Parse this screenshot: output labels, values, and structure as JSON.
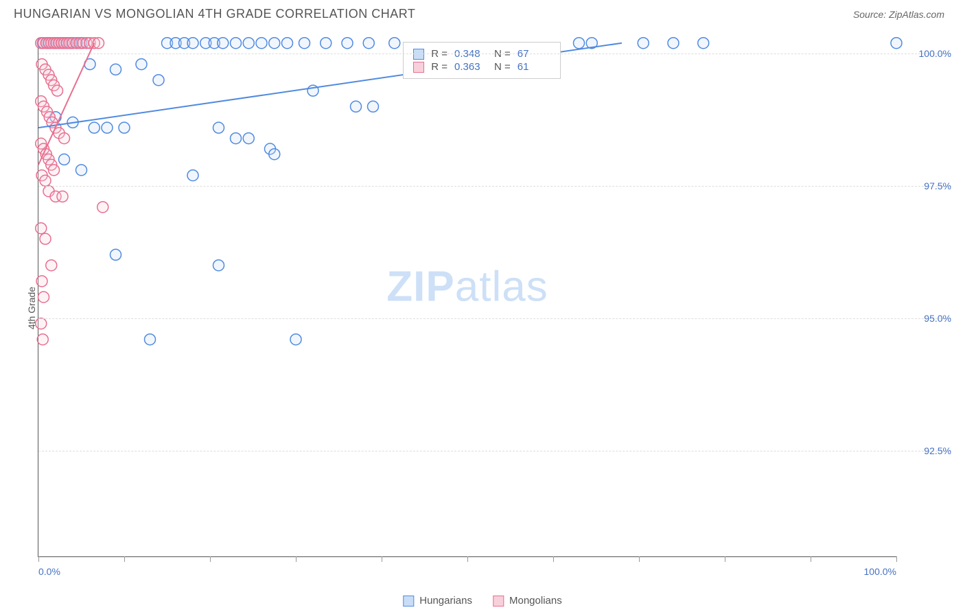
{
  "header": {
    "title": "HUNGARIAN VS MONGOLIAN 4TH GRADE CORRELATION CHART",
    "source_prefix": "Source: ",
    "source_name": "ZipAtlas.com"
  },
  "watermark": {
    "zip": "ZIP",
    "atlas": "atlas"
  },
  "chart": {
    "type": "scatter",
    "y_axis_label": "4th Grade",
    "xlim": [
      0,
      100
    ],
    "ylim": [
      90.5,
      100.3
    ],
    "x_ticks": [
      0,
      10,
      20,
      30,
      40,
      50,
      60,
      70,
      80,
      90,
      100
    ],
    "x_tick_labels": {
      "0": "0.0%",
      "100": "100.0%"
    },
    "y_ticks": [
      92.5,
      95.0,
      97.5,
      100.0
    ],
    "y_tick_labels": [
      "92.5%",
      "95.0%",
      "97.5%",
      "100.0%"
    ],
    "grid_color": "#dddddd",
    "background_color": "#ffffff",
    "marker_radius": 8,
    "marker_stroke_width": 1.5,
    "marker_fill_opacity": 0.25,
    "trend_line_width": 2,
    "series": [
      {
        "name": "Hungarians",
        "color": "#4f8ae0",
        "fill": "#c9ddf6",
        "r_value": "0.348",
        "n_value": "67",
        "trend": {
          "x1": 0,
          "y1": 98.6,
          "x2": 68,
          "y2": 100.2
        },
        "points": [
          [
            0.5,
            100.2
          ],
          [
            1,
            100.2
          ],
          [
            1.3,
            100.2
          ],
          [
            1.8,
            100.2
          ],
          [
            2,
            100.2
          ],
          [
            2.4,
            100.2
          ],
          [
            2.8,
            100.2
          ],
          [
            3,
            100.2
          ],
          [
            3.4,
            100.2
          ],
          [
            3.8,
            100.2
          ],
          [
            4,
            100.2
          ],
          [
            4.5,
            100.2
          ],
          [
            5,
            100.2
          ],
          [
            15,
            100.2
          ],
          [
            16,
            100.2
          ],
          [
            17,
            100.2
          ],
          [
            18,
            100.2
          ],
          [
            19.5,
            100.2
          ],
          [
            20.5,
            100.2
          ],
          [
            21.5,
            100.2
          ],
          [
            23,
            100.2
          ],
          [
            24.5,
            100.2
          ],
          [
            26,
            100.2
          ],
          [
            27.5,
            100.2
          ],
          [
            29,
            100.2
          ],
          [
            31,
            100.2
          ],
          [
            33.5,
            100.2
          ],
          [
            36,
            100.2
          ],
          [
            38.5,
            100.2
          ],
          [
            41.5,
            100.2
          ],
          [
            63,
            100.2
          ],
          [
            64.5,
            100.2
          ],
          [
            70.5,
            100.2
          ],
          [
            74,
            100.2
          ],
          [
            77.5,
            100.2
          ],
          [
            100,
            100.2
          ],
          [
            6,
            99.8
          ],
          [
            9,
            99.7
          ],
          [
            12,
            99.8
          ],
          [
            14,
            99.5
          ],
          [
            32,
            99.3
          ],
          [
            37,
            99.0
          ],
          [
            39,
            99.0
          ],
          [
            2,
            98.8
          ],
          [
            4,
            98.7
          ],
          [
            6.5,
            98.6
          ],
          [
            8,
            98.6
          ],
          [
            10,
            98.6
          ],
          [
            21,
            98.6
          ],
          [
            23,
            98.4
          ],
          [
            24.5,
            98.4
          ],
          [
            27,
            98.2
          ],
          [
            27.5,
            98.1
          ],
          [
            3,
            98.0
          ],
          [
            5,
            97.8
          ],
          [
            18,
            97.7
          ],
          [
            9,
            96.2
          ],
          [
            21,
            96.0
          ],
          [
            13,
            94.6
          ],
          [
            30,
            94.6
          ]
        ]
      },
      {
        "name": "Mongolians",
        "color": "#e86e8f",
        "fill": "#f8d0db",
        "r_value": "0.363",
        "n_value": "61",
        "trend": {
          "x1": 0,
          "y1": 97.9,
          "x2": 6.5,
          "y2": 100.2
        },
        "points": [
          [
            0.3,
            100.2
          ],
          [
            0.6,
            100.2
          ],
          [
            0.9,
            100.2
          ],
          [
            1.2,
            100.2
          ],
          [
            1.5,
            100.2
          ],
          [
            1.8,
            100.2
          ],
          [
            2.1,
            100.2
          ],
          [
            2.4,
            100.2
          ],
          [
            2.7,
            100.2
          ],
          [
            3.0,
            100.2
          ],
          [
            3.3,
            100.2
          ],
          [
            3.6,
            100.2
          ],
          [
            4.0,
            100.2
          ],
          [
            4.4,
            100.2
          ],
          [
            4.8,
            100.2
          ],
          [
            5.2,
            100.2
          ],
          [
            5.6,
            100.2
          ],
          [
            6.0,
            100.2
          ],
          [
            6.5,
            100.2
          ],
          [
            7.0,
            100.2
          ],
          [
            0.4,
            99.8
          ],
          [
            0.8,
            99.7
          ],
          [
            1.2,
            99.6
          ],
          [
            1.5,
            99.5
          ],
          [
            1.8,
            99.4
          ],
          [
            2.2,
            99.3
          ],
          [
            0.3,
            99.1
          ],
          [
            0.6,
            99.0
          ],
          [
            1.0,
            98.9
          ],
          [
            1.3,
            98.8
          ],
          [
            1.6,
            98.7
          ],
          [
            2.0,
            98.6
          ],
          [
            2.4,
            98.5
          ],
          [
            3.0,
            98.4
          ],
          [
            0.3,
            98.3
          ],
          [
            0.6,
            98.2
          ],
          [
            0.9,
            98.1
          ],
          [
            1.2,
            98.0
          ],
          [
            1.5,
            97.9
          ],
          [
            1.8,
            97.8
          ],
          [
            0.4,
            97.7
          ],
          [
            0.8,
            97.6
          ],
          [
            1.2,
            97.4
          ],
          [
            2.0,
            97.3
          ],
          [
            2.8,
            97.3
          ],
          [
            7.5,
            97.1
          ],
          [
            0.3,
            96.7
          ],
          [
            0.8,
            96.5
          ],
          [
            1.5,
            96.0
          ],
          [
            0.4,
            95.7
          ],
          [
            0.6,
            95.4
          ],
          [
            0.3,
            94.9
          ],
          [
            0.5,
            94.6
          ]
        ]
      }
    ]
  },
  "legend": {
    "series1_label": "Hungarians",
    "series2_label": "Mongolians"
  },
  "stat_box": {
    "r_label": "R =",
    "n_label": "N ="
  }
}
